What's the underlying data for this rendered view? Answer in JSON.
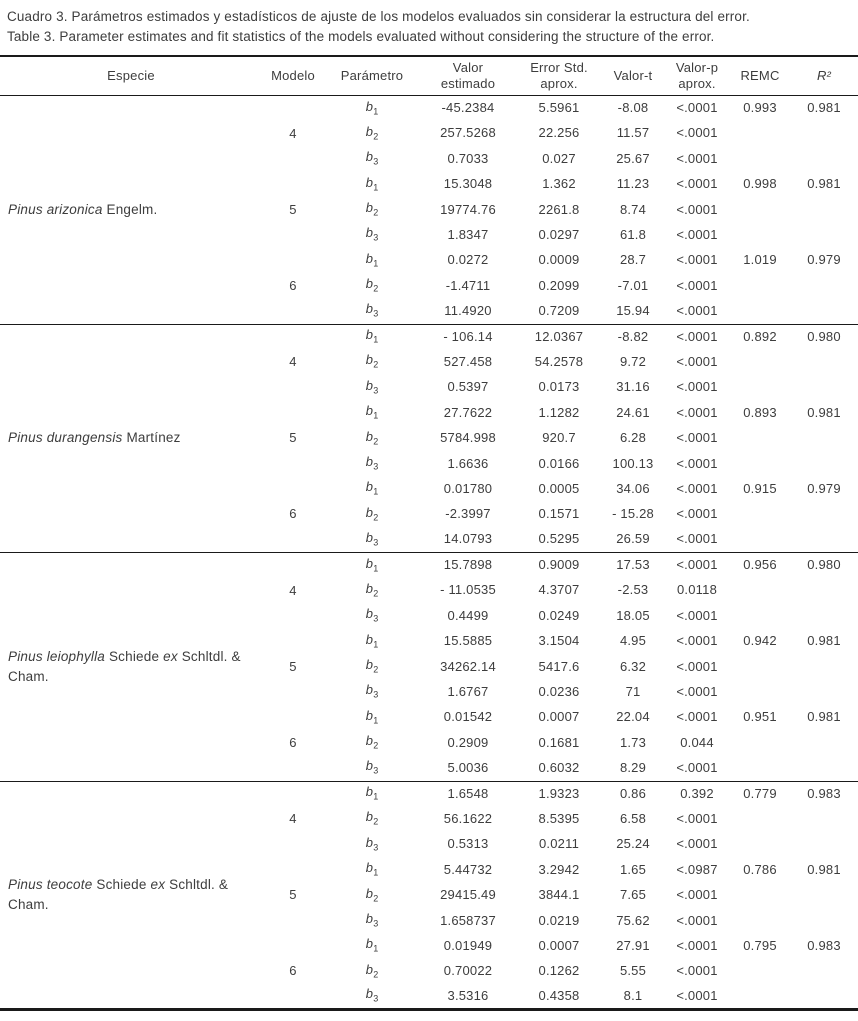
{
  "caption": {
    "spanish": "Cuadro 3. Parámetros estimados y estadísticos de ajuste de los modelos evaluados sin considerar la estructura del error.",
    "english": "Table 3. Parameter estimates and fit statistics of the models evaluated without considering the structure of the error."
  },
  "table": {
    "headers": [
      {
        "id": "especie",
        "lines": [
          "Especie"
        ]
      },
      {
        "id": "modelo",
        "lines": [
          "Modelo"
        ]
      },
      {
        "id": "parametro",
        "lines": [
          "Parámetro"
        ]
      },
      {
        "id": "valor-estimado",
        "lines": [
          "Valor",
          "estimado"
        ]
      },
      {
        "id": "error-std-aprox",
        "lines": [
          "Error Std.",
          "aprox."
        ]
      },
      {
        "id": "valor-t",
        "lines": [
          "Valor-t"
        ]
      },
      {
        "id": "valor-p-aprox",
        "lines": [
          "Valor-p",
          "aprox."
        ]
      },
      {
        "id": "remc",
        "lines": [
          "REMC"
        ]
      },
      {
        "id": "r2",
        "lines": [
          "R²"
        ],
        "italic": true
      }
    ],
    "species": [
      {
        "name": [
          {
            "text": "Pinus arizonica ",
            "italic": true
          },
          {
            "text": "Engelm.",
            "italic": false
          }
        ],
        "models": [
          {
            "modelo": "4",
            "rows": [
              {
                "param": "b",
                "sub": "1",
                "valor": "-45.2384",
                "error": "5.5961",
                "t": "-8.08",
                "p": "<.0001",
                "remc": "0.993",
                "r2": "0.981"
              },
              {
                "param": "b",
                "sub": "2",
                "valor": "257.5268",
                "error": "22.256",
                "t": "11.57",
                "p": "<.0001",
                "remc": "",
                "r2": ""
              },
              {
                "param": "b",
                "sub": "3",
                "valor": "0.7033",
                "error": "0.027",
                "t": "25.67",
                "p": "<.0001",
                "remc": "",
                "r2": ""
              }
            ]
          },
          {
            "modelo": "5",
            "rows": [
              {
                "param": "b",
                "sub": "1",
                "valor": "15.3048",
                "error": "1.362",
                "t": "11.23",
                "p": "<.0001",
                "remc": "0.998",
                "r2": "0.981"
              },
              {
                "param": "b",
                "sub": "2",
                "valor": "19774.76",
                "error": "2261.8",
                "t": "8.74",
                "p": "<.0001",
                "remc": "",
                "r2": ""
              },
              {
                "param": "b",
                "sub": "3",
                "valor": "1.8347",
                "error": "0.0297",
                "t": "61.8",
                "p": "<.0001",
                "remc": "",
                "r2": ""
              }
            ]
          },
          {
            "modelo": "6",
            "rows": [
              {
                "param": "b",
                "sub": "1",
                "valor": "0.0272",
                "error": "0.0009",
                "t": "28.7",
                "p": "<.0001",
                "remc": "1.019",
                "r2": "0.979"
              },
              {
                "param": "b",
                "sub": "2",
                "valor": "-1.4711",
                "error": "0.2099",
                "t": "-7.01",
                "p": "<.0001",
                "remc": "",
                "r2": ""
              },
              {
                "param": "b",
                "sub": "3",
                "valor": "11.4920",
                "error": "0.7209",
                "t": "15.94",
                "p": "<.0001",
                "remc": "",
                "r2": ""
              }
            ]
          }
        ]
      },
      {
        "name": [
          {
            "text": "Pinus durangensis ",
            "italic": true
          },
          {
            "text": "Martínez",
            "italic": false
          }
        ],
        "models": [
          {
            "modelo": "4",
            "rows": [
              {
                "param": "b",
                "sub": "1",
                "valor": "- 106.14",
                "error": "12.0367",
                "t": "-8.82",
                "p": "<.0001",
                "remc": "0.892",
                "r2": "0.980"
              },
              {
                "param": "b",
                "sub": "2",
                "valor": "527.458",
                "error": "54.2578",
                "t": "9.72",
                "p": "<.0001",
                "remc": "",
                "r2": ""
              },
              {
                "param": "b",
                "sub": "3",
                "valor": "0.5397",
                "error": "0.0173",
                "t": "31.16",
                "p": "<.0001",
                "remc": "",
                "r2": ""
              }
            ]
          },
          {
            "modelo": "5",
            "rows": [
              {
                "param": "b",
                "sub": "1",
                "valor": "27.7622",
                "error": "1.1282",
                "t": "24.61",
                "p": "<.0001",
                "remc": "0.893",
                "r2": "0.981"
              },
              {
                "param": "b",
                "sub": "2",
                "valor": "5784.998",
                "error": "920.7",
                "t": "6.28",
                "p": "<.0001",
                "remc": "",
                "r2": ""
              },
              {
                "param": "b",
                "sub": "3",
                "valor": "1.6636",
                "error": "0.0166",
                "t": "100.13",
                "p": "<.0001",
                "remc": "",
                "r2": ""
              }
            ]
          },
          {
            "modelo": "6",
            "rows": [
              {
                "param": "b",
                "sub": "1",
                "valor": "0.01780",
                "error": "0.0005",
                "t": "34.06",
                "p": "<.0001",
                "remc": "0.915",
                "r2": "0.979"
              },
              {
                "param": "b",
                "sub": "2",
                "valor": "-2.3997",
                "error": "0.1571",
                "t": "- 15.28",
                "p": "<.0001",
                "remc": "",
                "r2": ""
              },
              {
                "param": "b",
                "sub": "3",
                "valor": "14.0793",
                "error": "0.5295",
                "t": "26.59",
                "p": "<.0001",
                "remc": "",
                "r2": ""
              }
            ]
          }
        ]
      },
      {
        "name": [
          {
            "text": "Pinus leiophylla ",
            "italic": true
          },
          {
            "text": "Schiede ",
            "italic": false
          },
          {
            "text": "ex ",
            "italic": true
          },
          {
            "text": "Schltdl. & Cham.",
            "italic": false
          }
        ],
        "models": [
          {
            "modelo": "4",
            "rows": [
              {
                "param": "b",
                "sub": "1",
                "valor": "15.7898",
                "error": "0.9009",
                "t": "17.53",
                "p": "<.0001",
                "remc": "0.956",
                "r2": "0.980"
              },
              {
                "param": "b",
                "sub": "2",
                "valor": "- 11.0535",
                "error": "4.3707",
                "t": "-2.53",
                "p": "0.0118",
                "remc": "",
                "r2": ""
              },
              {
                "param": "b",
                "sub": "3",
                "valor": "0.4499",
                "error": "0.0249",
                "t": "18.05",
                "p": "<.0001",
                "remc": "",
                "r2": ""
              }
            ]
          },
          {
            "modelo": "5",
            "rows": [
              {
                "param": "b",
                "sub": "1",
                "valor": "15.5885",
                "error": "3.1504",
                "t": "4.95",
                "p": "<.0001",
                "remc": "0.942",
                "r2": "0.981"
              },
              {
                "param": "b",
                "sub": "2",
                "valor": "34262.14",
                "error": "5417.6",
                "t": "6.32",
                "p": "<.0001",
                "remc": "",
                "r2": ""
              },
              {
                "param": "b",
                "sub": "3",
                "valor": "1.6767",
                "error": "0.0236",
                "t": "71",
                "p": "<.0001",
                "remc": "",
                "r2": ""
              }
            ]
          },
          {
            "modelo": "6",
            "rows": [
              {
                "param": "b",
                "sub": "1",
                "valor": "0.01542",
                "error": "0.0007",
                "t": "22.04",
                "p": "<.0001",
                "remc": "0.951",
                "r2": "0.981"
              },
              {
                "param": "b",
                "sub": "2",
                "valor": "0.2909",
                "error": "0.1681",
                "t": "1.73",
                "p": "0.044",
                "remc": "",
                "r2": ""
              },
              {
                "param": "b",
                "sub": "3",
                "valor": "5.0036",
                "error": "0.6032",
                "t": "8.29",
                "p": "<.0001",
                "remc": "",
                "r2": ""
              }
            ]
          }
        ]
      },
      {
        "name": [
          {
            "text": "Pinus teocote ",
            "italic": true
          },
          {
            "text": "Schiede ",
            "italic": false
          },
          {
            "text": "ex ",
            "italic": true
          },
          {
            "text": "Schltdl. & Cham.",
            "italic": false
          }
        ],
        "models": [
          {
            "modelo": "4",
            "rows": [
              {
                "param": "b",
                "sub": "1",
                "valor": "1.6548",
                "error": "1.9323",
                "t": "0.86",
                "p": "0.392",
                "remc": "0.779",
                "r2": "0.983"
              },
              {
                "param": "b",
                "sub": "2",
                "valor": "56.1622",
                "error": "8.5395",
                "t": "6.58",
                "p": "<.0001",
                "remc": "",
                "r2": ""
              },
              {
                "param": "b",
                "sub": "3",
                "valor": "0.5313",
                "error": "0.0211",
                "t": "25.24",
                "p": "<.0001",
                "remc": "",
                "r2": ""
              }
            ]
          },
          {
            "modelo": "5",
            "rows": [
              {
                "param": "b",
                "sub": "1",
                "valor": "5.44732",
                "error": "3.2942",
                "t": "1.65",
                "p": "<.0987",
                "remc": "0.786",
                "r2": "0.981"
              },
              {
                "param": "b",
                "sub": "2",
                "valor": "29415.49",
                "error": "3844.1",
                "t": "7.65",
                "p": "<.0001",
                "remc": "",
                "r2": ""
              },
              {
                "param": "b",
                "sub": "3",
                "valor": "1.658737",
                "error": "0.0219",
                "t": "75.62",
                "p": "<.0001",
                "remc": "",
                "r2": ""
              }
            ]
          },
          {
            "modelo": "6",
            "rows": [
              {
                "param": "b",
                "sub": "1",
                "valor": "0.01949",
                "error": "0.0007",
                "t": "27.91",
                "p": "<.0001",
                "remc": "0.795",
                "r2": "0.983"
              },
              {
                "param": "b",
                "sub": "2",
                "valor": "0.70022",
                "error": "0.1262",
                "t": "5.55",
                "p": "<.0001",
                "remc": "",
                "r2": ""
              },
              {
                "param": "b",
                "sub": "3",
                "valor": "3.5316",
                "error": "0.4358",
                "t": "8.1",
                "p": "<.0001",
                "remc": "",
                "r2": ""
              }
            ]
          }
        ]
      }
    ]
  }
}
